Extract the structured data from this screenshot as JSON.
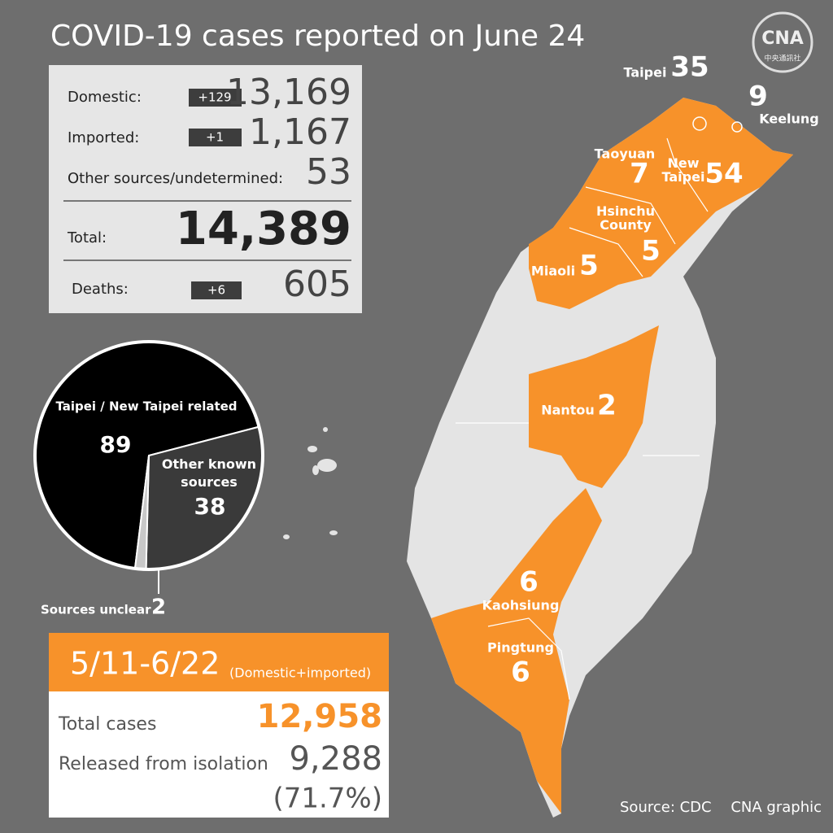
{
  "title": "COVID-19 cases reported on June 24",
  "logo": {
    "mark": "CNA",
    "subtitle": "中央通訊社"
  },
  "stats": {
    "domestic": {
      "label": "Domestic:",
      "change": "+129",
      "value": "13,169"
    },
    "imported": {
      "label": "Imported:",
      "change": "+1",
      "value": "1,167"
    },
    "other": {
      "label": "Other sources/undetermined:",
      "value": "53"
    },
    "total": {
      "label": "Total:",
      "value": "14,389"
    },
    "deaths": {
      "label": "Deaths:",
      "change": "+6",
      "value": "605"
    }
  },
  "chart_data": {
    "type": "pie",
    "categories": [
      "Taipei / New Taipei related",
      "Other known sources",
      "Sources unclear"
    ],
    "values": [
      89,
      38,
      2
    ],
    "colors": [
      "#000000",
      "#3a3a3a",
      "#c8c8c8"
    ]
  },
  "period": {
    "range": "5/11-6/22",
    "note": "(Domestic+imported)",
    "total_label": "Total cases",
    "total_value": "12,958",
    "released_label": "Released from isolation",
    "released_value": "9,288",
    "released_share": "(71.7%)"
  },
  "map": {
    "regions": [
      {
        "name": "Taipei",
        "cases": 35
      },
      {
        "name": "Keelung",
        "cases": 9
      },
      {
        "name": "Taoyuan",
        "cases": 7
      },
      {
        "name": "New Taipei",
        "cases": 54
      },
      {
        "name": "Hsinchu County",
        "cases": 5
      },
      {
        "name": "Miaoli",
        "cases": 5
      },
      {
        "name": "Nantou",
        "cases": 2
      },
      {
        "name": "Kaohsiung",
        "cases": 6
      },
      {
        "name": "Pingtung",
        "cases": 6
      }
    ]
  },
  "source": "Source: CDC",
  "credit": "CNA graphic"
}
